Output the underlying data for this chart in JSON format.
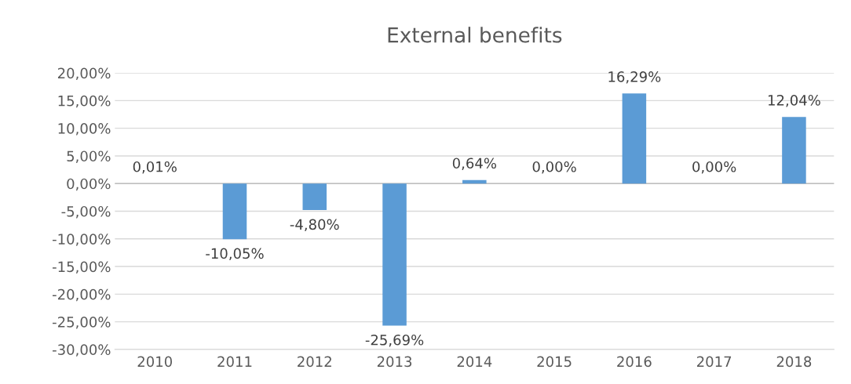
{
  "chart_data": {
    "type": "bar",
    "title": "External benefits",
    "categories": [
      "2010",
      "2011",
      "2012",
      "2013",
      "2014",
      "2015",
      "2016",
      "2017",
      "2018"
    ],
    "values": [
      0.01,
      -10.05,
      -4.8,
      -25.69,
      0.64,
      0.0,
      16.29,
      0.0,
      12.04
    ],
    "value_labels": [
      "0,01%",
      "-10,05%",
      "-4,80%",
      "-25,69%",
      "0,64%",
      "0,00%",
      "16,29%",
      "0,00%",
      "12,04%"
    ],
    "color": "#5b9bd5",
    "ylim": [
      -30,
      20
    ],
    "yticks": [
      {
        "value": -30,
        "label": "-30,00%"
      },
      {
        "value": -25,
        "label": "-25,00%"
      },
      {
        "value": -20,
        "label": "-20,00%"
      },
      {
        "value": -15,
        "label": "-15,00%"
      },
      {
        "value": -10,
        "label": "-10,00%"
      },
      {
        "value": -5,
        "label": "-5,00%"
      },
      {
        "value": 0,
        "label": "0,00%"
      },
      {
        "value": 5,
        "label": "5,00%"
      },
      {
        "value": 10,
        "label": "10,00%"
      },
      {
        "value": 15,
        "label": "15,00%"
      },
      {
        "value": 20,
        "label": "20,00%"
      }
    ],
    "grid": "y",
    "legend": false
  }
}
